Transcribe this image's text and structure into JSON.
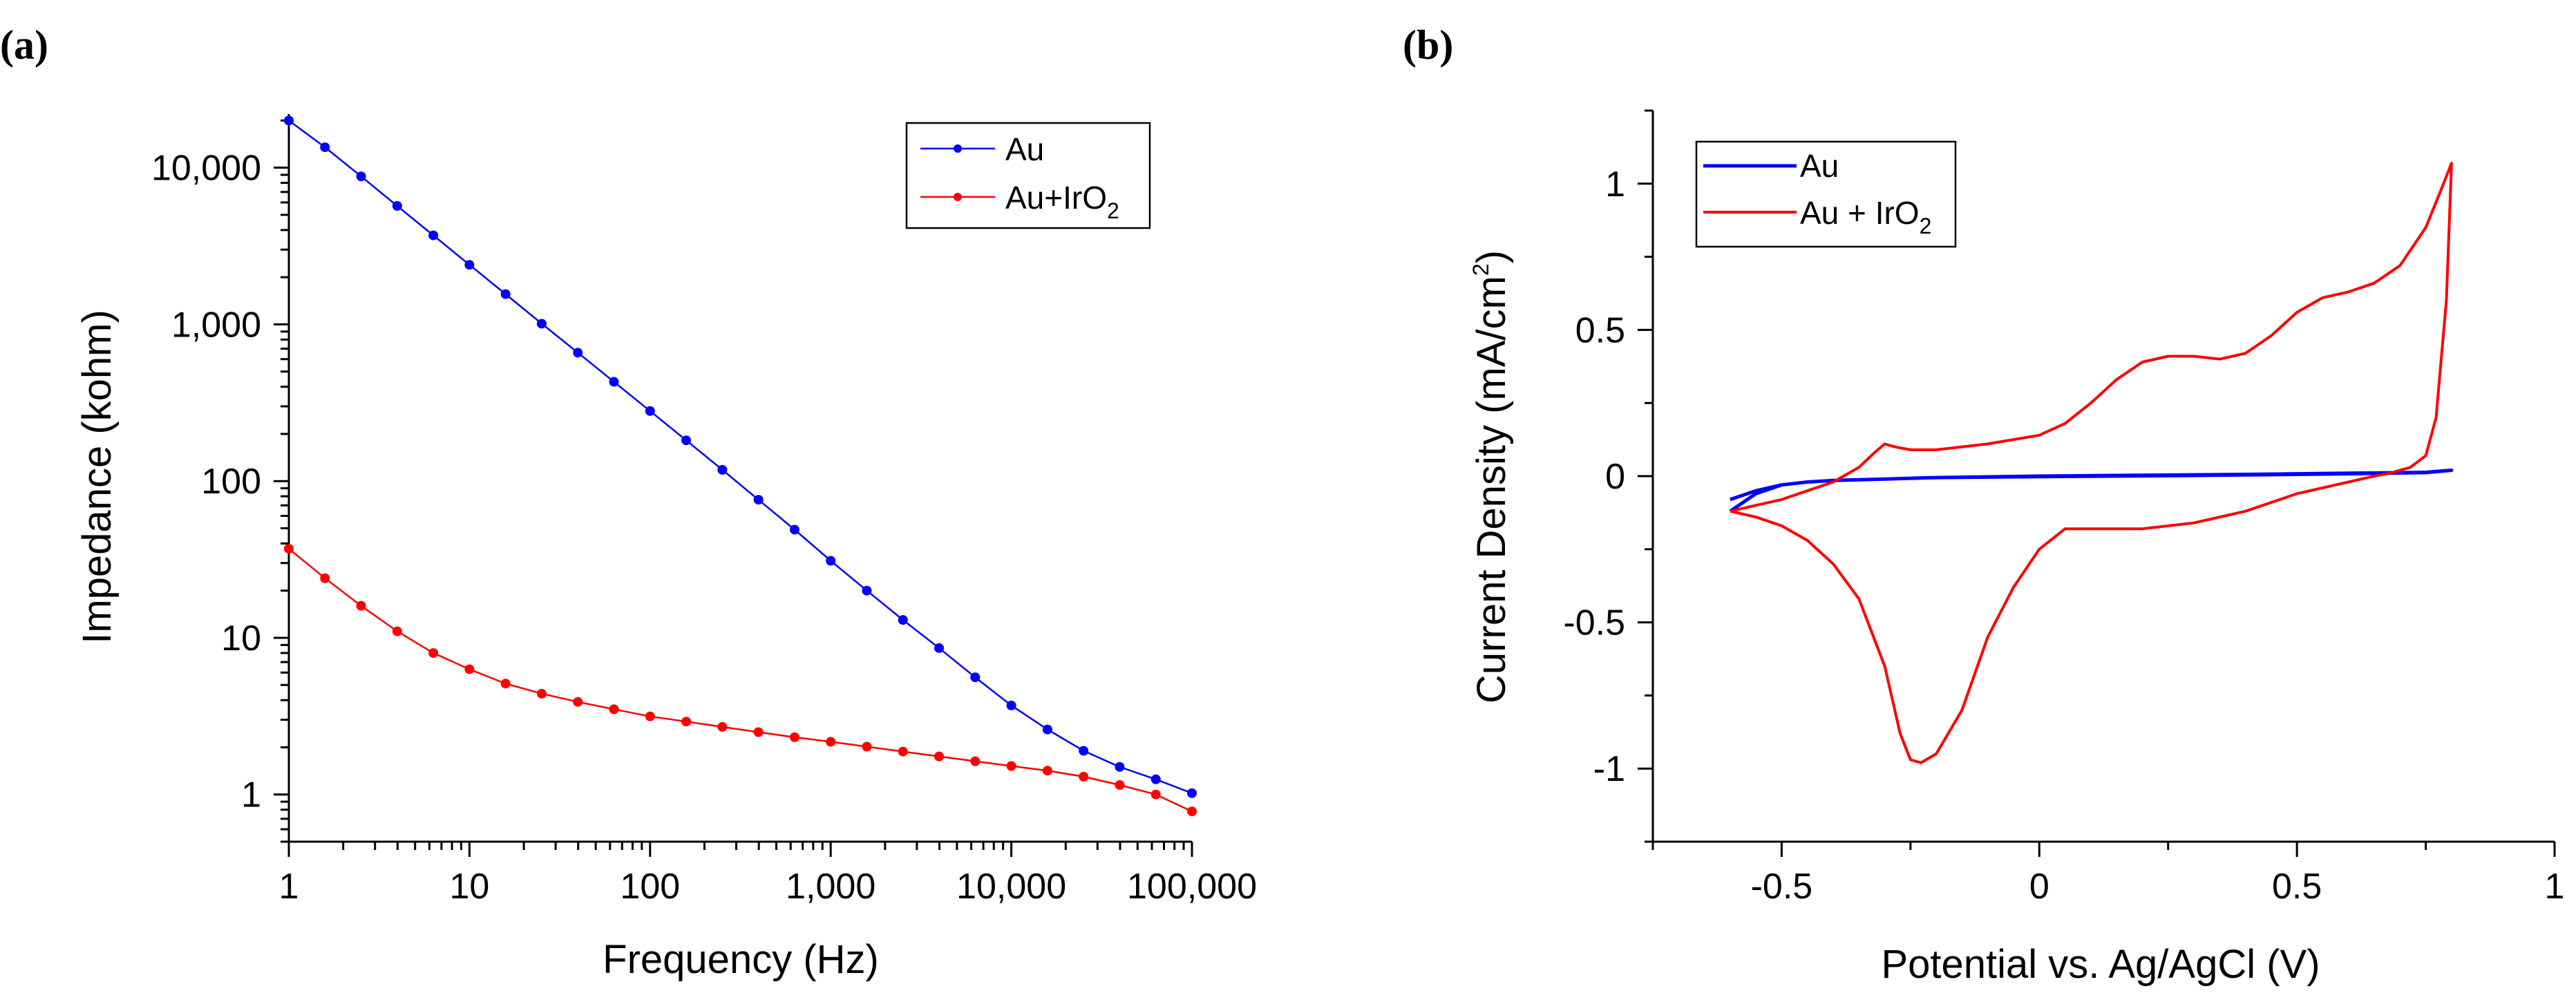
{
  "chart_data": [
    {
      "panel_label": "(a)",
      "type": "line",
      "xscale": "log",
      "yscale": "log",
      "xlabel": "Frequency (Hz)",
      "ylabel": "Impedance (kohm)",
      "xlim": [
        1,
        100000
      ],
      "ylim": [
        0.5,
        22000
      ],
      "x_tick_labels": [
        "1",
        "10",
        "100",
        "1,000",
        "10,000",
        "100,000"
      ],
      "x_ticks": [
        1,
        10,
        100,
        1000,
        10000,
        100000
      ],
      "y_tick_labels": [
        "1",
        "10",
        "100",
        "1,000",
        "10,000"
      ],
      "y_ticks": [
        1,
        10,
        100,
        1000,
        10000
      ],
      "legend_position": "top-right",
      "x": [
        1,
        1.585,
        2.512,
        3.981,
        6.31,
        10,
        15.85,
        25.12,
        39.81,
        63.1,
        100,
        158.5,
        251.2,
        398.1,
        631,
        1000,
        1585,
        2512,
        3981,
        6310,
        10000,
        15850,
        25120,
        39810,
        63100,
        100000
      ],
      "series": [
        {
          "name": "Au",
          "color": "#0000ff",
          "values": [
            20000,
            13500,
            8800,
            5700,
            3700,
            2400,
            1560,
            1010,
            660,
            430,
            280,
            182,
            118,
            76,
            49,
            31,
            20,
            13,
            8.6,
            5.6,
            3.7,
            2.6,
            1.9,
            1.5,
            1.25,
            1.02
          ]
        },
        {
          "name": "Au+IrO",
          "name_sub": "2",
          "color": "#ff0000",
          "values": [
            37,
            24,
            16,
            11,
            8,
            6.3,
            5.1,
            4.4,
            3.9,
            3.5,
            3.15,
            2.92,
            2.7,
            2.5,
            2.32,
            2.17,
            2.02,
            1.88,
            1.75,
            1.63,
            1.52,
            1.42,
            1.3,
            1.15,
            1.0,
            0.78
          ]
        }
      ]
    },
    {
      "panel_label": "(b)",
      "type": "line",
      "xlabel": "Potential vs. Ag/AgCl (V)",
      "ylabel": "Current Density (mA/cm",
      "ylabel_sup": "2",
      "ylabel_end": ")",
      "xlim": [
        -0.75,
        1.0
      ],
      "ylim": [
        -1.25,
        1.25
      ],
      "x_ticks": [
        -0.5,
        0,
        0.5,
        1
      ],
      "x_tick_labels": [
        "-0.5",
        "0",
        "0.5",
        "1"
      ],
      "y_ticks": [
        -1,
        -0.5,
        0,
        0.5,
        1
      ],
      "y_tick_labels": [
        "-1",
        "-0.5",
        "0",
        "0.5",
        "1"
      ],
      "legend_position": "top-left",
      "series": [
        {
          "name": "Au",
          "color": "#0000ff",
          "x": [
            -0.6,
            -0.55,
            -0.5,
            -0.45,
            -0.4,
            -0.3,
            -0.2,
            0,
            0.2,
            0.4,
            0.6,
            0.75,
            0.8,
            0.75,
            0.6,
            0.4,
            0.2,
            0,
            -0.2,
            -0.3,
            -0.4,
            -0.45,
            -0.5,
            -0.55,
            -0.6
          ],
          "y": [
            -0.08,
            -0.05,
            -0.03,
            -0.02,
            -0.015,
            -0.01,
            -0.005,
            0,
            0.003,
            0.006,
            0.01,
            0.013,
            0.02,
            0.012,
            0.008,
            0.004,
            0.001,
            -0.002,
            -0.005,
            -0.01,
            -0.015,
            -0.02,
            -0.03,
            -0.06,
            -0.12
          ]
        },
        {
          "name": "Au + IrO",
          "name_sub": "2",
          "color": "#ff0000",
          "x": [
            -0.6,
            -0.55,
            -0.5,
            -0.45,
            -0.4,
            -0.35,
            -0.32,
            -0.3,
            -0.28,
            -0.25,
            -0.2,
            -0.1,
            0,
            0.05,
            0.1,
            0.15,
            0.2,
            0.25,
            0.3,
            0.35,
            0.4,
            0.45,
            0.5,
            0.55,
            0.6,
            0.65,
            0.7,
            0.75,
            0.78,
            0.8,
            0.79,
            0.77,
            0.75,
            0.72,
            0.68,
            0.65,
            0.6,
            0.5,
            0.4,
            0.3,
            0.2,
            0.1,
            0.05,
            0,
            -0.05,
            -0.1,
            -0.15,
            -0.2,
            -0.23,
            -0.25,
            -0.27,
            -0.3,
            -0.35,
            -0.4,
            -0.45,
            -0.5,
            -0.55,
            -0.6
          ],
          "y": [
            -0.12,
            -0.1,
            -0.08,
            -0.05,
            -0.02,
            0.03,
            0.08,
            0.11,
            0.1,
            0.09,
            0.09,
            0.11,
            0.14,
            0.18,
            0.25,
            0.33,
            0.39,
            0.41,
            0.41,
            0.4,
            0.42,
            0.48,
            0.56,
            0.61,
            0.63,
            0.66,
            0.72,
            0.85,
            0.98,
            1.07,
            0.6,
            0.2,
            0.07,
            0.03,
            0.01,
            0.0,
            -0.02,
            -0.06,
            -0.12,
            -0.16,
            -0.18,
            -0.18,
            -0.18,
            -0.25,
            -0.38,
            -0.55,
            -0.8,
            -0.95,
            -0.98,
            -0.97,
            -0.88,
            -0.65,
            -0.42,
            -0.3,
            -0.22,
            -0.17,
            -0.14,
            -0.12
          ]
        }
      ]
    }
  ]
}
